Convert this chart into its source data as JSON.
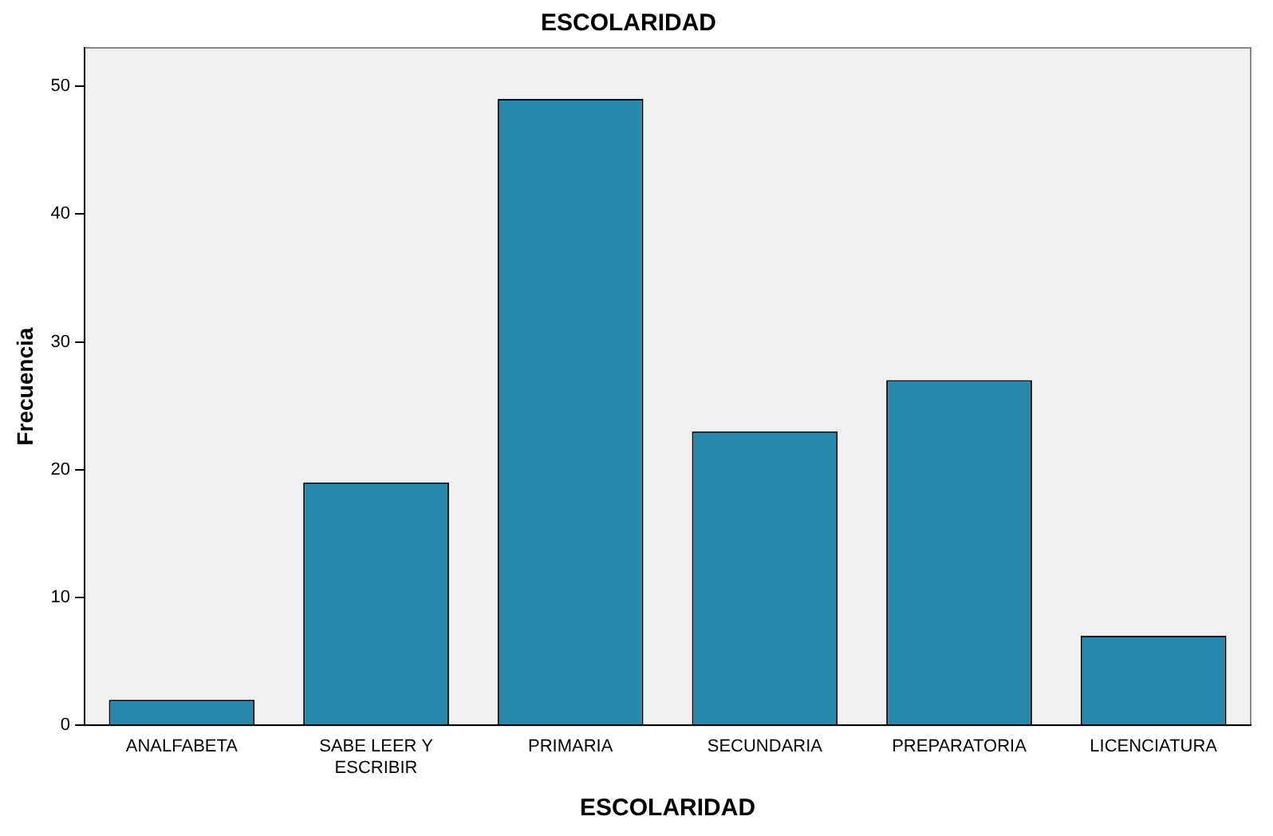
{
  "chart_data": {
    "type": "bar",
    "title": "ESCOLARIDAD",
    "xlabel": "ESCOLARIDAD",
    "ylabel": "Frecuencia",
    "categories": [
      "ANALFABETA",
      "SABE LEER Y ESCRIBIR",
      "PRIMARIA",
      "SECUNDARIA",
      "PREPARATORIA",
      "LICENCIATURA"
    ],
    "values": [
      2,
      19,
      49,
      23,
      27,
      7
    ],
    "color": "#2688ab",
    "ylim": [
      0,
      53
    ],
    "yticks": [
      0,
      10,
      20,
      30,
      40,
      50
    ],
    "grid": false,
    "legend": false
  }
}
